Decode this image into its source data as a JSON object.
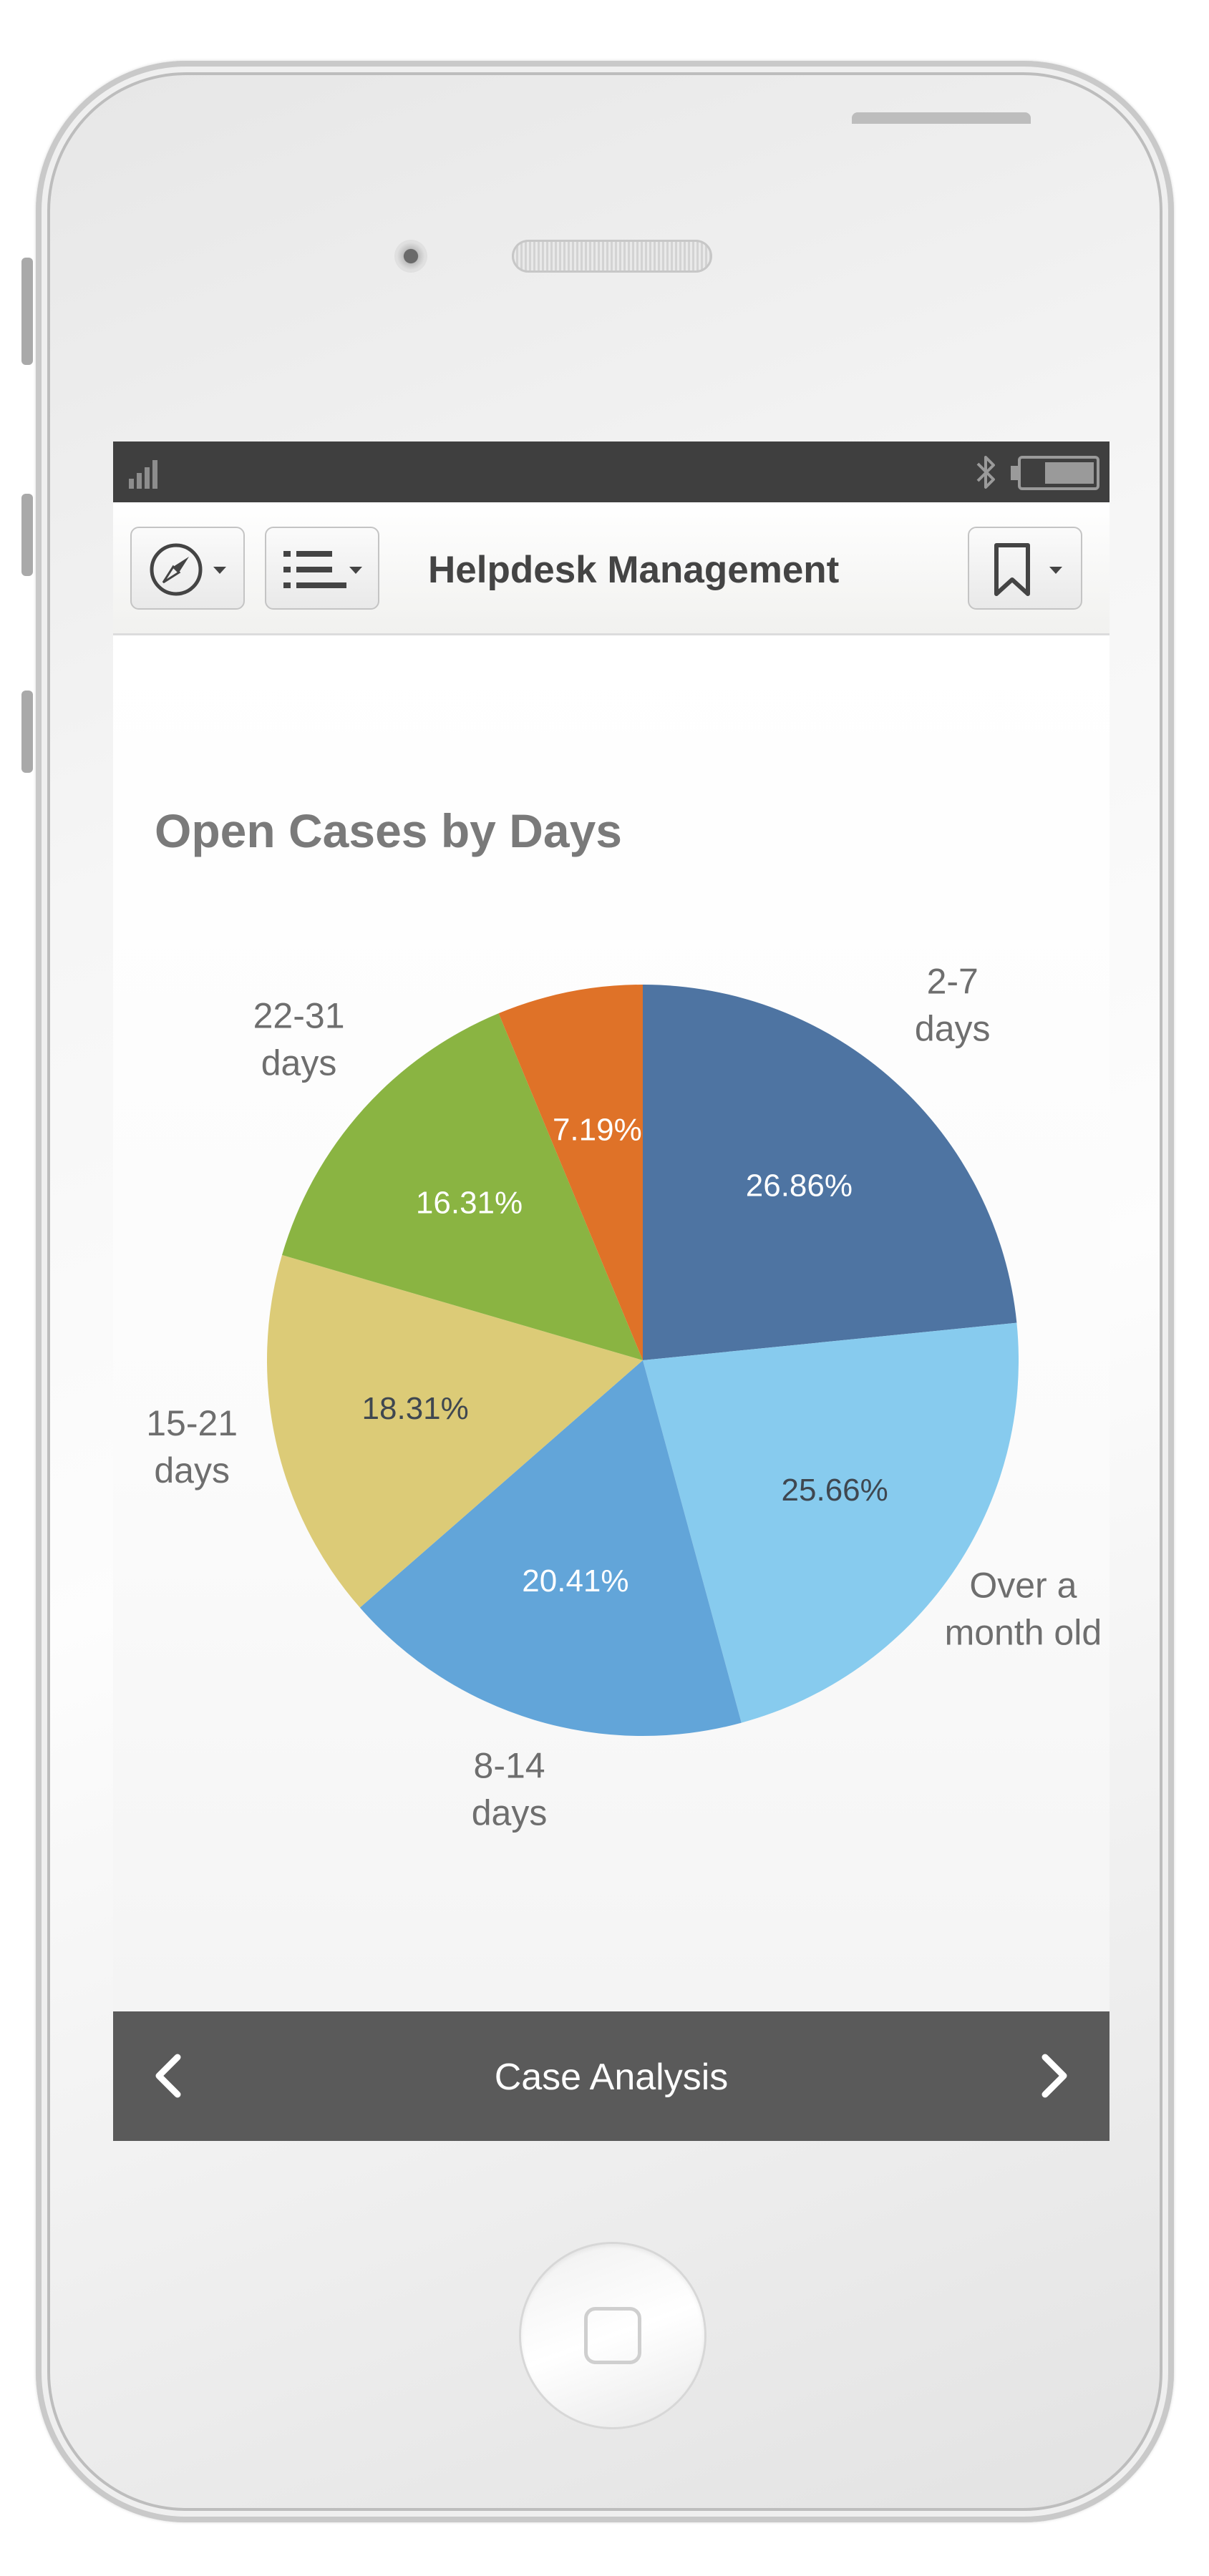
{
  "toolbar": {
    "title": "Helpdesk Management"
  },
  "chart_data": {
    "type": "pie",
    "title": "Open Cases by Days",
    "slices": [
      {
        "label": "2-7 days",
        "label_lines": [
          "2-7",
          "days"
        ],
        "value": 26.86,
        "value_label": "26.86%",
        "color": "#4e74a2",
        "text_color": "#ffffff"
      },
      {
        "label": "Over a month old",
        "label_lines": [
          "Over a",
          "month old"
        ],
        "value": 25.66,
        "value_label": "25.66%",
        "color": "#87cbee",
        "text_color": "#3f4750"
      },
      {
        "label": "8-14 days",
        "label_lines": [
          "8-14",
          "days"
        ],
        "value": 20.41,
        "value_label": "20.41%",
        "color": "#62a5d9",
        "text_color": "#ffffff"
      },
      {
        "label": "15-21 days",
        "label_lines": [
          "15-21",
          "days"
        ],
        "value": 18.31,
        "value_label": "18.31%",
        "color": "#dccb77",
        "text_color": "#3f4750"
      },
      {
        "label": "22-31 days",
        "label_lines": [
          "22-31",
          "days"
        ],
        "value": 16.31,
        "value_label": "16.31%",
        "color": "#8ab442",
        "text_color": "#ffffff"
      },
      {
        "label": "",
        "label_lines": [],
        "value": 7.19,
        "value_label": "7.19%",
        "color": "#df7228",
        "text_color": "#ffffff"
      }
    ],
    "start_angle_deg": 0,
    "direction": "clockwise",
    "legend": "none"
  },
  "navbar": {
    "title": "Case Analysis"
  },
  "icons": {
    "compass": "compass-icon",
    "list": "list-icon",
    "bookmark": "bookmark-icon",
    "prev": "chevron-left-icon",
    "next": "chevron-right-icon"
  }
}
